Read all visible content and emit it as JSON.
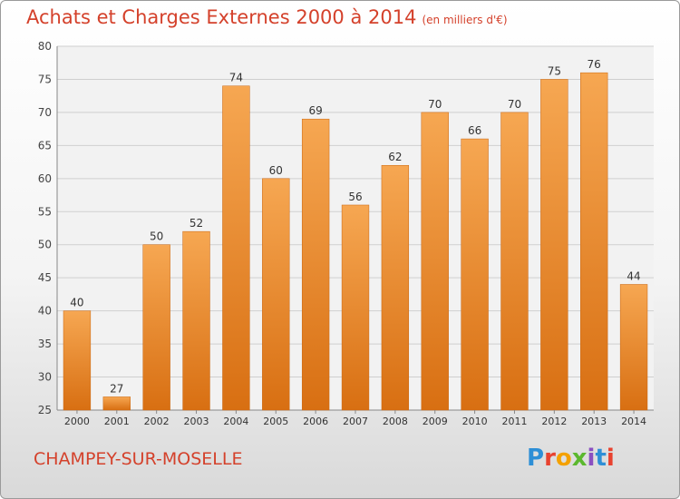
{
  "chart_data": {
    "type": "bar",
    "title": "Achats et Charges Externes 2000 à 2014",
    "subtitle": "(en milliers d'€)",
    "categories": [
      "2000",
      "2001",
      "2002",
      "2003",
      "2004",
      "2005",
      "2006",
      "2007",
      "2008",
      "2009",
      "2010",
      "2011",
      "2012",
      "2013",
      "2014"
    ],
    "values": [
      40,
      27,
      50,
      52,
      74,
      60,
      69,
      56,
      62,
      70,
      66,
      70,
      75,
      76,
      44
    ],
    "ylim": [
      25,
      80
    ],
    "yticks": [
      25,
      30,
      35,
      40,
      45,
      50,
      55,
      60,
      65,
      70,
      75,
      80
    ],
    "grid": true,
    "bar_color": "#f08e2e",
    "xlabel": "",
    "ylabel": ""
  },
  "footer": {
    "city": "CHAMPEY-SUR-MOSELLE",
    "brand_letters": [
      "P",
      "r",
      "o",
      "x",
      "i",
      "t",
      "i"
    ],
    "brand_colors": [
      "#2e8fd6",
      "#e8422f",
      "#f4a100",
      "#5bb82e",
      "#8a4fc1",
      "#2e8fd6",
      "#e8422f"
    ]
  }
}
